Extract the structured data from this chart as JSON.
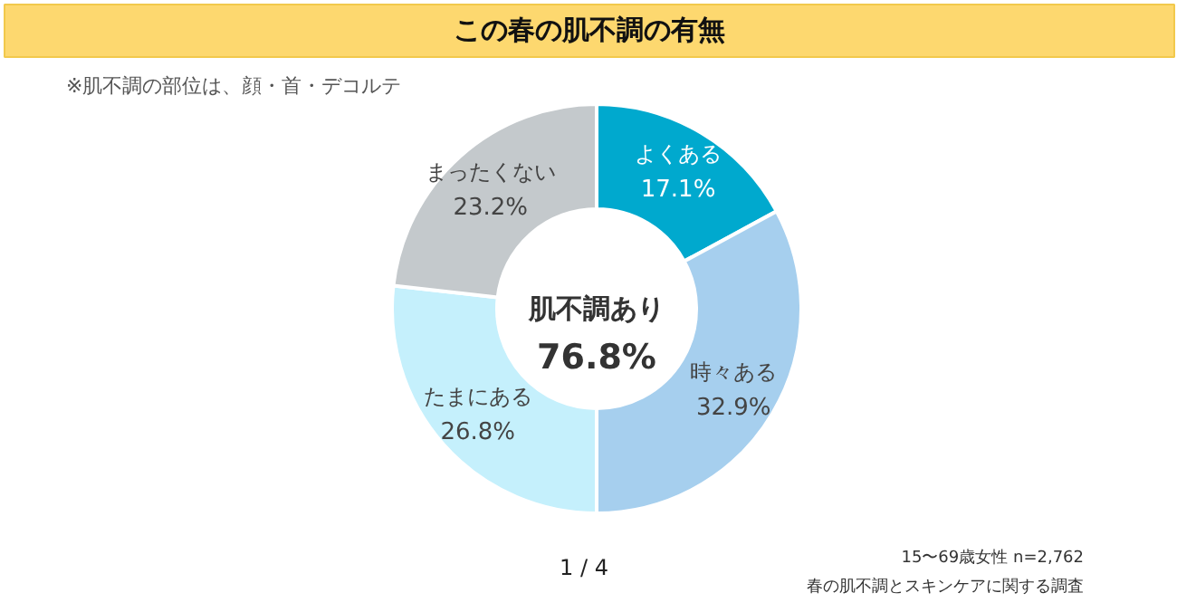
{
  "chart_data": {
    "type": "donut",
    "title": "この春の肌不調の有無",
    "subtitle": "※肌不調の部位は、顔・首・デコルテ",
    "categories": [
      "よくある",
      "時々ある",
      "たまにある",
      "まったくない"
    ],
    "values": [
      17.1,
      32.9,
      26.8,
      23.2
    ],
    "colors": [
      "#00a9ce",
      "#a6cfee",
      "#c5f0fc",
      "#c4c9cc"
    ],
    "value_labels": [
      "17.1%",
      "32.9%",
      "26.8%",
      "23.2%"
    ],
    "annotations": [
      "肌不調あり",
      "76.8%",
      "1 / 4",
      "15〜69歳女性 n=2,762",
      "春の肌不調とスキンケアに関する調査"
    ]
  }
}
